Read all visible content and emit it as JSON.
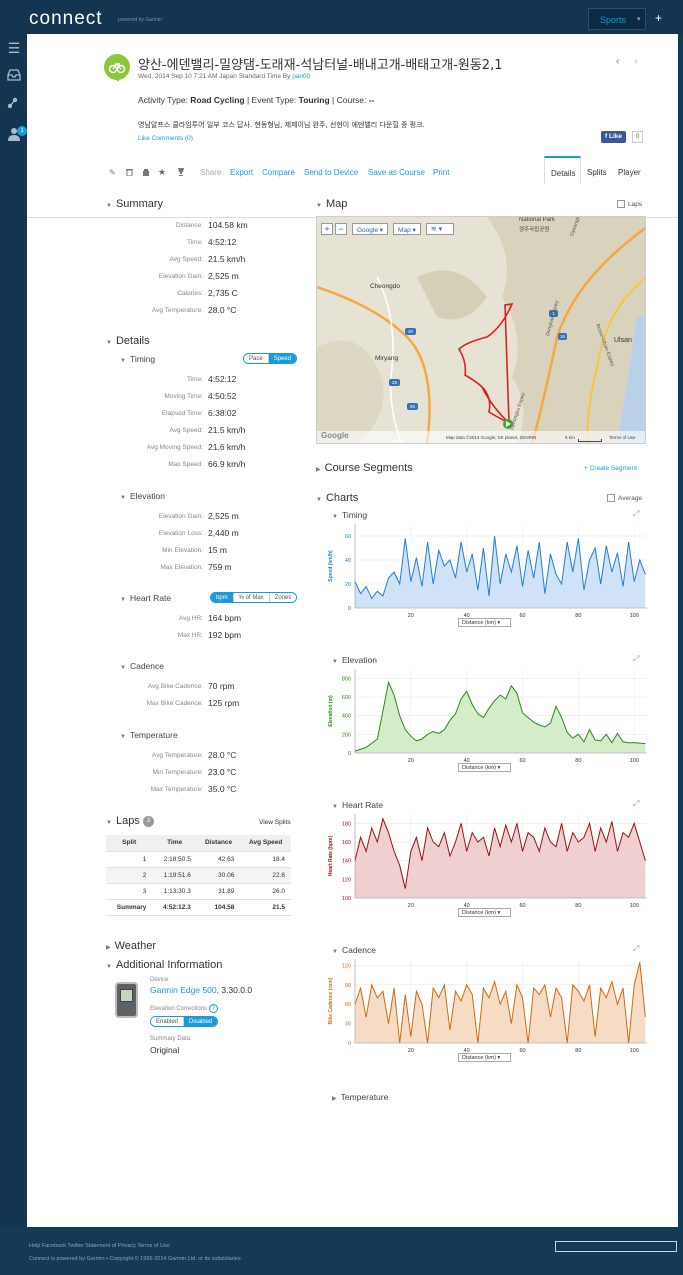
{
  "app": {
    "logo": "connect",
    "logo_sub": "powered by Garmin",
    "sports_label": "Sports",
    "plus": "+"
  },
  "sidebar": {
    "badge": "1"
  },
  "activity": {
    "title": "양산-에덴밸리-밀양댐-도래재-석남터널-배내고개-배태고개-원동2,1",
    "date": "Wed, 2014 Sep 10 7:21 AM Japan Standard Time By",
    "by_user": "pan00",
    "type_label": "Activity Type:",
    "type_value": "Road Cycling",
    "event_label": "| Event Type:",
    "event_value": "Touring",
    "course_label": "| Course:",
    "course_value": "--",
    "description": "영남알프스 클라임투어 일부 코스 답사. 현동형님, 제제이님 완주, 선현이 에덴밸리 다운힐 중 펑크.",
    "like_comments": "Like Comments (0)",
    "fb_like": "Like",
    "fb_count": "0"
  },
  "toolbar": {
    "share": "Share",
    "export": "Export",
    "compare": "Compare",
    "send": "Send to Device",
    "save_course": "Save as Course",
    "print": "Print"
  },
  "tabs": {
    "details": "Details",
    "splits": "Splits",
    "player": "Player"
  },
  "summary": {
    "title": "Summary",
    "rows": [
      {
        "label": "Distance:",
        "value": "104.58 km"
      },
      {
        "label": "Time:",
        "value": "4:52:12"
      },
      {
        "label": "Avg Speed:",
        "value": "21.5 km/h"
      },
      {
        "label": "Elevation Gain:",
        "value": "2,525 m"
      },
      {
        "label": "Calories:",
        "value": "2,735 C"
      },
      {
        "label": "Avg Temperature:",
        "value": "28.0 °C"
      }
    ]
  },
  "details": {
    "title": "Details",
    "timing": {
      "title": "Timing",
      "toggle": [
        "Pace",
        "Speed"
      ],
      "rows": [
        {
          "label": "Time:",
          "value": "4:52:12"
        },
        {
          "label": "Moving Time:",
          "value": "4:50:52"
        },
        {
          "label": "Elapsed Time:",
          "value": "6:38:02"
        },
        {
          "label": "Avg Speed:",
          "value": "21.5 km/h"
        },
        {
          "label": "Avg Moving Speed:",
          "value": "21.6 km/h"
        },
        {
          "label": "Max Speed:",
          "value": "66.9 km/h"
        }
      ]
    },
    "elevation": {
      "title": "Elevation",
      "rows": [
        {
          "label": "Elevation Gain:",
          "value": "2,525 m"
        },
        {
          "label": "Elevation Loss:",
          "value": "2,440 m"
        },
        {
          "label": "Min Elevation:",
          "value": "15 m"
        },
        {
          "label": "Max Elevation:",
          "value": "759 m"
        }
      ]
    },
    "heart_rate": {
      "title": "Heart Rate",
      "toggle": [
        "bpm",
        "% of Max",
        "Zones"
      ],
      "rows": [
        {
          "label": "Avg HR:",
          "value": "164 bpm"
        },
        {
          "label": "Max HR:",
          "value": "192 bpm"
        }
      ]
    },
    "cadence": {
      "title": "Cadence",
      "rows": [
        {
          "label": "Avg Bike Cadence:",
          "value": "70 rpm"
        },
        {
          "label": "Max Bike Cadence:",
          "value": "125 rpm"
        }
      ]
    },
    "temperature": {
      "title": "Temperature",
      "rows": [
        {
          "label": "Avg Temperature:",
          "value": "28.0 °C"
        },
        {
          "label": "Min Temperature:",
          "value": "23.0 °C"
        },
        {
          "label": "Max Temperature:",
          "value": "35.0 °C"
        }
      ]
    }
  },
  "laps": {
    "title": "Laps",
    "count": "3",
    "view_splits": "View Splits",
    "headers": [
      "Split",
      "Time",
      "Distance",
      "Avg Speed"
    ],
    "rows": [
      [
        "1",
        "2:18:50.5",
        "42.63",
        "18.4"
      ],
      [
        "2",
        "1:19:51.6",
        "30.06",
        "22.6"
      ],
      [
        "3",
        "1:13:30.3",
        "31.89",
        "26.0"
      ]
    ],
    "summary": [
      "Summary",
      "4:52:12.3",
      "104.58",
      "21.5"
    ]
  },
  "weather": {
    "title": "Weather"
  },
  "additional": {
    "title": "Additional Information",
    "device_label": "Device:",
    "device_name": "Garmin Edge 500",
    "device_version": ", 3.30.0.0",
    "elev_corr_label": "Elevation Corrections",
    "elev_toggle": [
      "Enabled",
      "Disabled"
    ],
    "summary_data_label": "Summary Data:",
    "summary_data_value": "Original"
  },
  "map": {
    "title": "Map",
    "laps_label": "Laps",
    "zoom_in": "+",
    "zoom_out": "−",
    "provider": "Google",
    "type": "Map",
    "places": [
      "National Park",
      "경주국립공원",
      "Cheongdo",
      "Miryang",
      "Ulsan",
      "Gyeongbu Expwy",
      "Donghae Expwy",
      "Busan-Ulsan Expwy",
      "Gyeongbu Expwy"
    ],
    "road_shields": [
      "20",
      "25",
      "55",
      "55",
      "1",
      "16"
    ],
    "attribution": "Map data ©2014 Google, SK planet, ZENRIN",
    "scale": "5 km",
    "terms": "Terms of Use",
    "google": "Google"
  },
  "course_segments": {
    "title": "Course Segments",
    "create": "+ Create Segment"
  },
  "charts": {
    "title": "Charts",
    "average_label": "Average",
    "temperature_title": "Temperature"
  },
  "chart_data": [
    {
      "type": "area",
      "title": "Timing",
      "ylabel": "Speed (km/h)",
      "xlabel": "Distance (km)",
      "color": "#1f7fd6",
      "fill": "#cfe2f7",
      "ylim": [
        0,
        70
      ],
      "xlim": [
        0,
        104.58
      ],
      "yticks": [
        0,
        20,
        40,
        60
      ],
      "xticks": [
        20,
        40,
        60,
        80,
        100
      ],
      "x": [
        0,
        2,
        4,
        6,
        8,
        10,
        12,
        14,
        16,
        18,
        20,
        22,
        24,
        26,
        28,
        30,
        32,
        34,
        36,
        38,
        40,
        42,
        44,
        46,
        48,
        50,
        52,
        54,
        56,
        58,
        60,
        62,
        64,
        66,
        68,
        70,
        72,
        74,
        76,
        78,
        80,
        82,
        84,
        86,
        88,
        90,
        92,
        94,
        96,
        98,
        100,
        102,
        104
      ],
      "values": [
        22,
        12,
        18,
        8,
        14,
        10,
        25,
        30,
        20,
        58,
        22,
        42,
        18,
        55,
        20,
        48,
        35,
        40,
        25,
        55,
        30,
        45,
        15,
        50,
        10,
        60,
        20,
        45,
        30,
        52,
        18,
        48,
        25,
        55,
        12,
        45,
        28,
        20,
        55,
        30,
        58,
        15,
        40,
        50,
        20,
        52,
        30,
        46,
        18,
        55,
        22,
        40,
        28
      ]
    },
    {
      "type": "area",
      "title": "Elevation",
      "ylabel": "Elevation (m)",
      "xlabel": "Distance (km)",
      "color": "#2e8a14",
      "fill": "#d4ecc9",
      "ylim": [
        0,
        900
      ],
      "xlim": [
        0,
        104.58
      ],
      "yticks": [
        0,
        200,
        400,
        600,
        800
      ],
      "xticks": [
        20,
        40,
        60,
        80,
        100
      ],
      "x": [
        0,
        4,
        8,
        10,
        12,
        14,
        16,
        18,
        20,
        22,
        24,
        26,
        28,
        30,
        32,
        34,
        36,
        38,
        40,
        42,
        44,
        46,
        48,
        50,
        52,
        54,
        56,
        58,
        60,
        62,
        64,
        66,
        68,
        70,
        72,
        74,
        76,
        78,
        80,
        82,
        84,
        86,
        88,
        90,
        92,
        94,
        96,
        98,
        100,
        104
      ],
      "values": [
        20,
        60,
        150,
        450,
        759,
        620,
        400,
        250,
        180,
        130,
        150,
        200,
        230,
        210,
        250,
        350,
        420,
        580,
        660,
        520,
        420,
        380,
        480,
        560,
        620,
        580,
        720,
        640,
        430,
        380,
        330,
        300,
        280,
        320,
        500,
        380,
        220,
        160,
        200,
        120,
        250,
        140,
        130,
        200,
        110,
        210,
        120,
        110,
        110,
        100
      ]
    },
    {
      "type": "area",
      "title": "Heart Rate",
      "ylabel": "Heart Rate (bpm)",
      "xlabel": "Distance (km)",
      "color": "#9a1010",
      "fill": "#f0cfd1",
      "ylim": [
        100,
        190
      ],
      "xlim": [
        0,
        104.58
      ],
      "yticks": [
        100,
        120,
        140,
        160,
        180
      ],
      "xticks": [
        20,
        40,
        60,
        80,
        100
      ],
      "x": [
        0,
        2,
        4,
        6,
        8,
        10,
        12,
        14,
        16,
        18,
        20,
        22,
        24,
        26,
        28,
        30,
        32,
        34,
        36,
        38,
        40,
        42,
        44,
        46,
        48,
        50,
        52,
        54,
        56,
        58,
        60,
        62,
        64,
        66,
        68,
        70,
        72,
        74,
        76,
        78,
        80,
        82,
        84,
        86,
        88,
        90,
        92,
        94,
        96,
        98,
        100,
        102,
        104
      ],
      "values": [
        140,
        165,
        150,
        175,
        160,
        185,
        170,
        150,
        135,
        110,
        150,
        165,
        140,
        175,
        160,
        155,
        170,
        145,
        160,
        180,
        150,
        170,
        160,
        165,
        145,
        175,
        155,
        178,
        160,
        180,
        150,
        170,
        165,
        150,
        175,
        160,
        155,
        180,
        150,
        170,
        160,
        165,
        180,
        150,
        175,
        160,
        182,
        150,
        170,
        165,
        180,
        160,
        140
      ]
    },
    {
      "type": "area",
      "title": "Cadence",
      "ylabel": "Bike Cadence (rpm)",
      "xlabel": "Distance (km)",
      "color": "#d06a10",
      "fill": "#f6dcc4",
      "ylim": [
        0,
        130
      ],
      "xlim": [
        0,
        104.58
      ],
      "yticks": [
        0,
        30,
        60,
        90,
        120
      ],
      "xticks": [
        20,
        40,
        60,
        80,
        100
      ],
      "x": [
        0,
        2,
        4,
        6,
        8,
        10,
        12,
        14,
        16,
        18,
        20,
        22,
        24,
        26,
        28,
        30,
        32,
        34,
        36,
        38,
        40,
        42,
        44,
        46,
        48,
        50,
        52,
        54,
        56,
        58,
        60,
        62,
        64,
        66,
        68,
        70,
        72,
        74,
        76,
        78,
        80,
        82,
        84,
        86,
        88,
        90,
        92,
        94,
        96,
        98,
        100,
        102,
        104
      ],
      "values": [
        60,
        85,
        40,
        90,
        70,
        80,
        30,
        85,
        0,
        75,
        10,
        80,
        60,
        0,
        85,
        70,
        90,
        20,
        80,
        65,
        90,
        75,
        0,
        85,
        70,
        95,
        60,
        80,
        30,
        90,
        70,
        0,
        85,
        75,
        90,
        40,
        85,
        70,
        0,
        90,
        80,
        65,
        90,
        10,
        85,
        70,
        95,
        60,
        85,
        0,
        90,
        125,
        40
      ]
    }
  ],
  "footer": {
    "links": "Help Facebook Twitter Statement of Privacy Terms of Use",
    "copyright": "Connect is powered by Garmin • Copyright © 1996-2014 Garmin Ltd. or its subsidiaries"
  }
}
